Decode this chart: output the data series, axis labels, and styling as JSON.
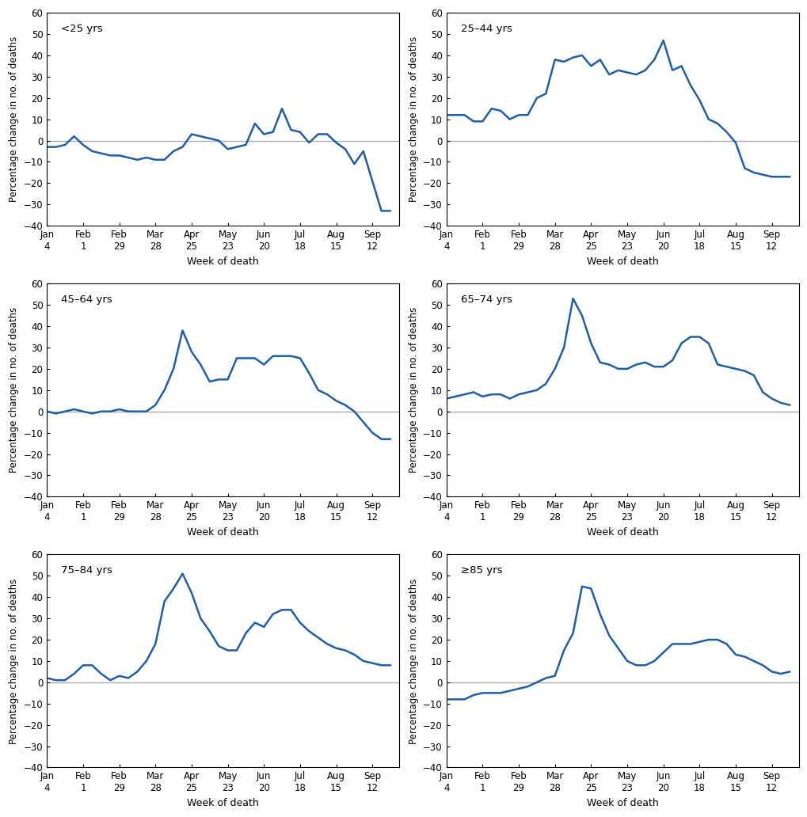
{
  "x_tick_labels": [
    "Jan\n4",
    "Feb\n1",
    "Feb\n29",
    "Mar\n28",
    "Apr\n25",
    "May\n23",
    "Jun\n20",
    "Jul\n18",
    "Aug\n15",
    "Sep\n12"
  ],
  "line_color": "#1f5ea8",
  "zero_line_color": "#aaaaaa",
  "ylabel": "Percentage change in no. of deaths",
  "xlabel": "Week of death",
  "ylim": [
    -40,
    60
  ],
  "yticks": [
    -40,
    -30,
    -20,
    -10,
    0,
    10,
    20,
    30,
    40,
    50,
    60
  ],
  "panels": [
    {
      "label": "<25 yrs",
      "x": [
        0,
        1,
        2,
        3,
        4,
        5,
        6,
        7,
        8,
        9,
        10,
        11,
        12,
        13,
        14,
        15,
        16,
        17,
        18,
        19,
        20,
        21,
        22,
        23,
        24,
        25,
        26,
        27,
        28,
        29,
        30,
        31,
        32,
        33,
        34,
        35,
        36,
        37,
        38
      ],
      "y": [
        -3,
        -3,
        -2,
        2,
        -2,
        -5,
        -6,
        -7,
        -7,
        -8,
        -9,
        -8,
        -9,
        -9,
        -5,
        -3,
        3,
        2,
        1,
        0,
        -4,
        -3,
        -2,
        8,
        3,
        4,
        15,
        5,
        4,
        -1,
        3,
        3,
        -1,
        -4,
        -11,
        -5,
        -19,
        -33,
        -33
      ]
    },
    {
      "label": "25–44 yrs",
      "x": [
        0,
        1,
        2,
        3,
        4,
        5,
        6,
        7,
        8,
        9,
        10,
        11,
        12,
        13,
        14,
        15,
        16,
        17,
        18,
        19,
        20,
        21,
        22,
        23,
        24,
        25,
        26,
        27,
        28,
        29,
        30,
        31,
        32,
        33,
        34,
        35,
        36,
        37,
        38
      ],
      "y": [
        12,
        12,
        12,
        9,
        9,
        15,
        14,
        10,
        12,
        12,
        20,
        22,
        38,
        37,
        39,
        40,
        35,
        38,
        31,
        33,
        32,
        31,
        33,
        38,
        47,
        33,
        35,
        26,
        19,
        10,
        8,
        4,
        -1,
        -13,
        -15,
        -16,
        -17,
        -17,
        -17
      ]
    },
    {
      "label": "45–64 yrs",
      "x": [
        0,
        1,
        2,
        3,
        4,
        5,
        6,
        7,
        8,
        9,
        10,
        11,
        12,
        13,
        14,
        15,
        16,
        17,
        18,
        19,
        20,
        21,
        22,
        23,
        24,
        25,
        26,
        27,
        28,
        29,
        30,
        31,
        32,
        33,
        34,
        35,
        36,
        37,
        38
      ],
      "y": [
        0,
        -1,
        0,
        1,
        0,
        -1,
        0,
        0,
        1,
        0,
        0,
        0,
        3,
        10,
        20,
        38,
        28,
        22,
        14,
        15,
        15,
        25,
        25,
        25,
        22,
        26,
        26,
        26,
        25,
        18,
        10,
        8,
        5,
        3,
        0,
        -5,
        -10,
        -13,
        -13
      ]
    },
    {
      "label": "65–74 yrs",
      "x": [
        0,
        1,
        2,
        3,
        4,
        5,
        6,
        7,
        8,
        9,
        10,
        11,
        12,
        13,
        14,
        15,
        16,
        17,
        18,
        19,
        20,
        21,
        22,
        23,
        24,
        25,
        26,
        27,
        28,
        29,
        30,
        31,
        32,
        33,
        34,
        35,
        36,
        37,
        38
      ],
      "y": [
        6,
        7,
        8,
        9,
        7,
        8,
        8,
        6,
        8,
        9,
        10,
        13,
        20,
        30,
        53,
        45,
        32,
        23,
        22,
        20,
        20,
        22,
        23,
        21,
        21,
        24,
        32,
        35,
        35,
        32,
        22,
        21,
        20,
        19,
        17,
        9,
        6,
        4,
        3
      ]
    },
    {
      "label": "75–84 yrs",
      "x": [
        0,
        1,
        2,
        3,
        4,
        5,
        6,
        7,
        8,
        9,
        10,
        11,
        12,
        13,
        14,
        15,
        16,
        17,
        18,
        19,
        20,
        21,
        22,
        23,
        24,
        25,
        26,
        27,
        28,
        29,
        30,
        31,
        32,
        33,
        34,
        35,
        36,
        37,
        38
      ],
      "y": [
        2,
        1,
        1,
        4,
        8,
        8,
        4,
        1,
        3,
        2,
        5,
        10,
        18,
        38,
        44,
        51,
        42,
        30,
        24,
        17,
        15,
        15,
        23,
        28,
        26,
        32,
        34,
        34,
        28,
        24,
        21,
        18,
        16,
        15,
        13,
        10,
        9,
        8,
        8
      ]
    },
    {
      "label": "≥85 yrs",
      "x": [
        0,
        1,
        2,
        3,
        4,
        5,
        6,
        7,
        8,
        9,
        10,
        11,
        12,
        13,
        14,
        15,
        16,
        17,
        18,
        19,
        20,
        21,
        22,
        23,
        24,
        25,
        26,
        27,
        28,
        29,
        30,
        31,
        32,
        33,
        34,
        35,
        36,
        37,
        38
      ],
      "y": [
        -8,
        -8,
        -8,
        -6,
        -5,
        -5,
        -5,
        -4,
        -3,
        -2,
        0,
        2,
        3,
        15,
        23,
        45,
        44,
        32,
        22,
        16,
        10,
        8,
        8,
        10,
        14,
        18,
        18,
        18,
        19,
        20,
        20,
        18,
        13,
        12,
        10,
        8,
        5,
        4,
        5
      ]
    }
  ]
}
